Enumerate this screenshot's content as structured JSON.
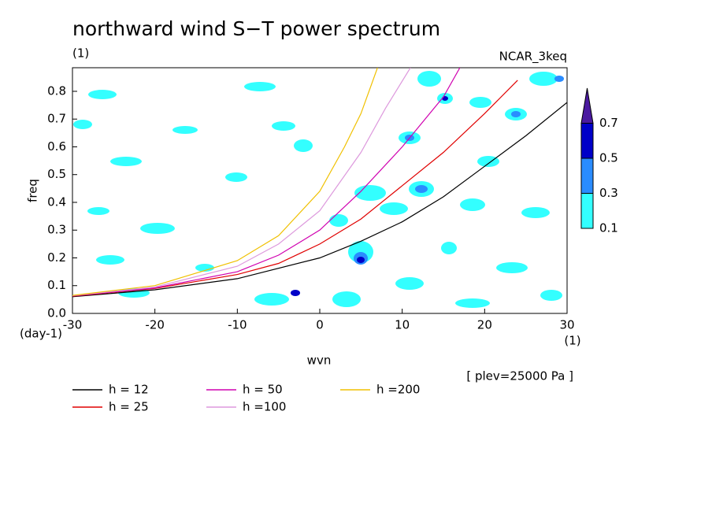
{
  "chart_data": {
    "type": "line",
    "title": "northward wind S−T power spectrum",
    "subtitle": "(1)",
    "source": "NCAR_3keq",
    "x_label": "wvn",
    "y_label": "freq",
    "y_unit": "(day-1)",
    "x_unit": "(1)",
    "annotation": "[ plev=25000 Pa ]",
    "xlim": [
      -30,
      30
    ],
    "xticks": [
      -30,
      -20,
      -10,
      0,
      10,
      20,
      30
    ],
    "ylim": [
      0,
      0.885
    ],
    "yticks": [
      {
        "value": 0,
        "label": "0.0"
      },
      0.1,
      0.2,
      0.3,
      0.4,
      0.5,
      0.6,
      0.7,
      0.8
    ],
    "series": [
      {
        "name": "h = 12",
        "color": "#000000",
        "x": [
          -30,
          -20,
          -10,
          0,
          5,
          10,
          15,
          20,
          25,
          30
        ],
        "values": [
          0.06,
          0.085,
          0.125,
          0.2,
          0.26,
          0.33,
          0.42,
          0.53,
          0.64,
          0.76
        ]
      },
      {
        "name": "h = 25",
        "color": "#e00000",
        "x": [
          -30,
          -20,
          -10,
          -5,
          0,
          5,
          10,
          15,
          20,
          24
        ],
        "values": [
          0.062,
          0.09,
          0.14,
          0.18,
          0.25,
          0.34,
          0.46,
          0.58,
          0.72,
          0.84
        ]
      },
      {
        "name": "h = 50",
        "color": "#d000b0",
        "x": [
          -30,
          -20,
          -10,
          -5,
          0,
          5,
          10,
          15,
          17
        ],
        "values": [
          0.063,
          0.092,
          0.15,
          0.21,
          0.3,
          0.44,
          0.6,
          0.78,
          0.885
        ]
      },
      {
        "name": "h =100",
        "color": "#dd99dd",
        "x": [
          -30,
          -20,
          -10,
          -5,
          0,
          5,
          8,
          11
        ],
        "values": [
          0.064,
          0.095,
          0.17,
          0.25,
          0.37,
          0.58,
          0.74,
          0.885
        ]
      },
      {
        "name": "h =200",
        "color": "#f0c000",
        "x": [
          -30,
          -20,
          -10,
          -5,
          0,
          3,
          5,
          7
        ],
        "values": [
          0.065,
          0.1,
          0.19,
          0.28,
          0.44,
          0.6,
          0.72,
          0.885
        ]
      }
    ],
    "colorbar": {
      "levels": [
        0.1,
        0.3,
        0.5,
        0.7
      ],
      "colors": [
        "#33ffff",
        "#2a8cff",
        "#0000c8",
        "#4b1aa0"
      ]
    }
  }
}
